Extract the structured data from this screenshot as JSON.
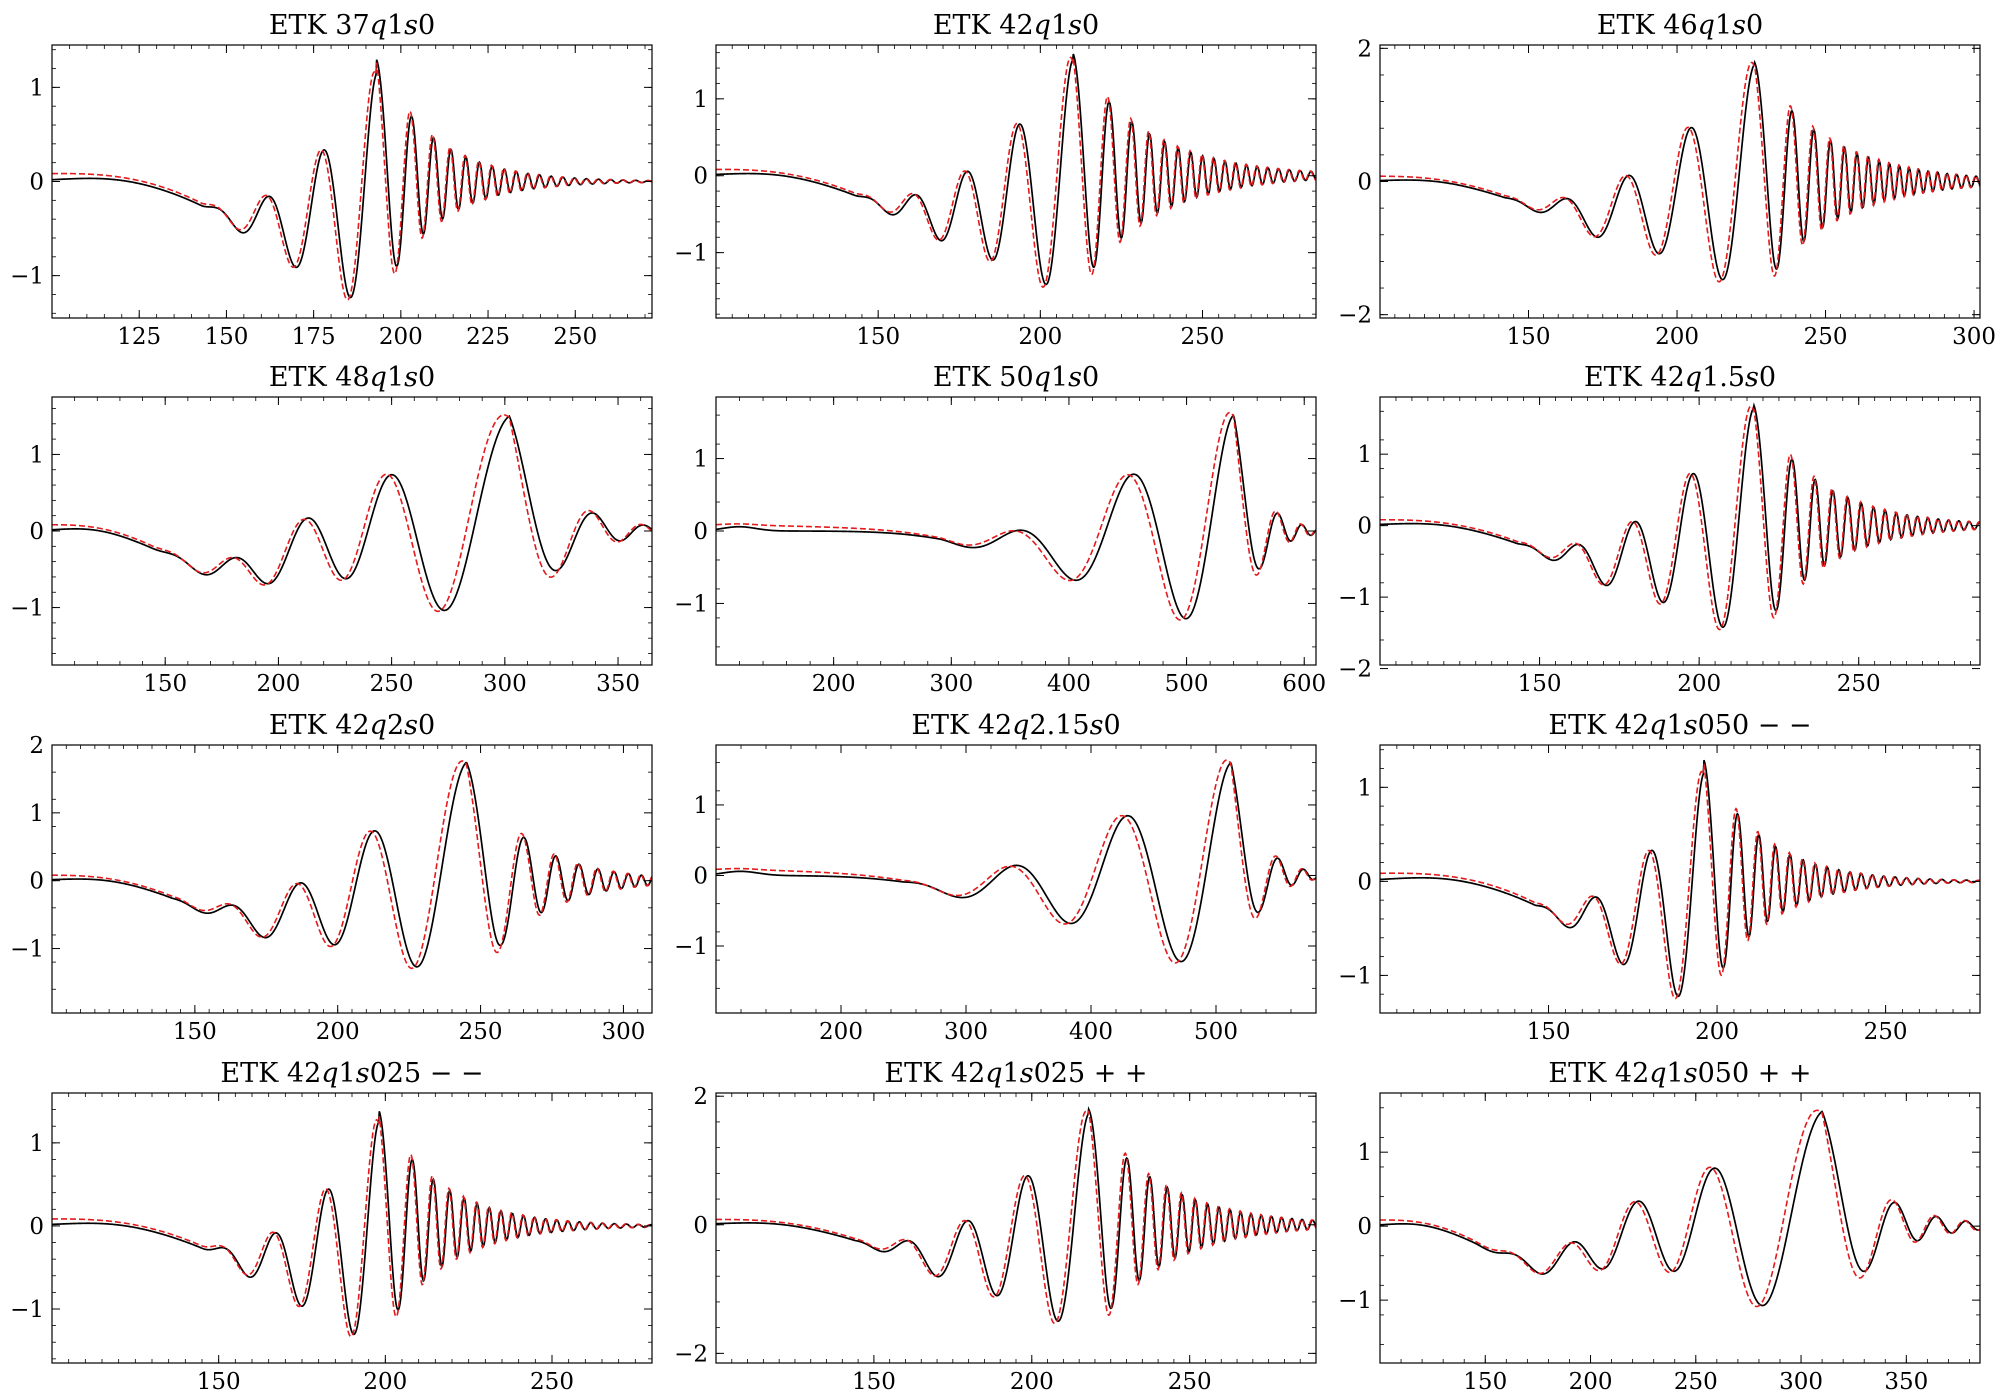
{
  "chart_data": [
    {
      "type": "line",
      "title_parts": [
        {
          "t": "ETK 37",
          "i": false
        },
        {
          "t": "q",
          "i": true
        },
        {
          "t": "1",
          "i": false
        },
        {
          "t": "s",
          "i": true
        },
        {
          "t": "0",
          "i": false
        }
      ],
      "xlim": [
        100,
        272
      ],
      "ylim": [
        -1.45,
        1.45
      ],
      "xticks": [
        125,
        150,
        175,
        200,
        225,
        250
      ],
      "yticks": [
        -1,
        0,
        1
      ],
      "series": [
        {
          "role": "black",
          "style": "solid",
          "color": "#000000"
        },
        {
          "role": "red",
          "style": "dashed",
          "color": "#e41a1c"
        }
      ],
      "wave": {
        "t0": 100,
        "tmerge": 193,
        "tend": 272,
        "amp": 1.3,
        "tau": 55,
        "tw": 15,
        "neg": 0.72,
        "negc": 175,
        "negw": 32,
        "p0": 16,
        "decay": 16,
        "shrink": 0.006
      }
    },
    {
      "type": "line",
      "title_parts": [
        {
          "t": "ETK 42",
          "i": false
        },
        {
          "t": "q",
          "i": true
        },
        {
          "t": "1",
          "i": false
        },
        {
          "t": "s",
          "i": true
        },
        {
          "t": "0",
          "i": false
        }
      ],
      "xlim": [
        100,
        285
      ],
      "ylim": [
        -1.85,
        1.7
      ],
      "xticks": [
        150,
        200,
        250
      ],
      "yticks": [
        -1,
        0,
        1
      ],
      "series": [
        {
          "role": "black",
          "style": "solid",
          "color": "#000000"
        },
        {
          "role": "red",
          "style": "dashed",
          "color": "#e41a1c"
        }
      ],
      "wave": {
        "t0": 100,
        "tmerge": 210,
        "tend": 285,
        "amp": 1.6,
        "tau": 60,
        "tw": 17,
        "neg": 0.72,
        "negc": 178,
        "negw": 35,
        "p0": 16,
        "decay": 22,
        "shrink": 0.005
      }
    },
    {
      "type": "line",
      "title_parts": [
        {
          "t": "ETK 46",
          "i": false
        },
        {
          "t": "q",
          "i": true
        },
        {
          "t": "1",
          "i": false
        },
        {
          "t": "s",
          "i": true
        },
        {
          "t": "0",
          "i": false
        }
      ],
      "xlim": [
        100,
        302
      ],
      "ylim": [
        -2.05,
        2.05
      ],
      "xticks": [
        150,
        200,
        250,
        300
      ],
      "yticks": [
        -2,
        0,
        2
      ],
      "series": [
        {
          "role": "black",
          "style": "solid",
          "color": "#000000"
        },
        {
          "role": "red",
          "style": "dashed",
          "color": "#e41a1c"
        }
      ],
      "wave": {
        "t0": 100,
        "tmerge": 226,
        "tend": 302,
        "amp": 1.8,
        "tau": 65,
        "tw": 22,
        "neg": 0.68,
        "negc": 180,
        "negw": 38,
        "p0": 21,
        "decay": 24,
        "shrink": 0.005
      }
    },
    {
      "type": "line",
      "title_parts": [
        {
          "t": "ETK 48",
          "i": false
        },
        {
          "t": "q",
          "i": true
        },
        {
          "t": "1",
          "i": false
        },
        {
          "t": "s",
          "i": true
        },
        {
          "t": "0",
          "i": false
        }
      ],
      "xlim": [
        100,
        365
      ],
      "ylim": [
        -1.75,
        1.75
      ],
      "xticks": [
        150,
        200,
        250,
        300,
        350
      ],
      "yticks": [
        -1,
        0,
        1
      ],
      "series": [
        {
          "role": "black",
          "style": "solid",
          "color": "#000000"
        },
        {
          "role": "red",
          "style": "dashed",
          "color": "#e41a1c"
        }
      ],
      "wave": {
        "t0": 100,
        "tmerge": 302,
        "tend": 365,
        "amp": 1.5,
        "tau": 160,
        "tw": 70,
        "neg": 0.62,
        "negc": 182,
        "negw": 38,
        "p0": 29,
        "decay": 20,
        "shrink": 0.0012
      }
    },
    {
      "type": "line",
      "title_parts": [
        {
          "t": "ETK 50",
          "i": false
        },
        {
          "t": "q",
          "i": true
        },
        {
          "t": "1",
          "i": false
        },
        {
          "t": "s",
          "i": true
        },
        {
          "t": "0",
          "i": false
        }
      ],
      "xlim": [
        100,
        610
      ],
      "ylim": [
        -1.85,
        1.85
      ],
      "xticks": [
        200,
        300,
        400,
        500,
        600
      ],
      "yticks": [
        -1,
        0,
        1
      ],
      "series": [
        {
          "role": "black",
          "style": "solid",
          "color": "#000000"
        },
        {
          "role": "red",
          "style": "dashed",
          "color": "#e41a1c"
        }
      ],
      "wave": {
        "t0": 100,
        "tmerge": 540,
        "tend": 610,
        "amp": 1.6,
        "tau": 420,
        "tw": 80,
        "neg": 0.3,
        "negc": 370,
        "negw": 80,
        "p0": 105,
        "decay": 20,
        "shrink": 0.0015
      }
    },
    {
      "type": "line",
      "title_parts": [
        {
          "t": "ETK 42",
          "i": false
        },
        {
          "t": "q",
          "i": true
        },
        {
          "t": "1.5",
          "i": false
        },
        {
          "t": "s",
          "i": true
        },
        {
          "t": "0",
          "i": false
        }
      ],
      "xlim": [
        100,
        288
      ],
      "ylim": [
        -1.95,
        1.8
      ],
      "xticks": [
        150,
        200,
        250
      ],
      "yticks": [
        -2,
        -1,
        0,
        1
      ],
      "series": [
        {
          "role": "black",
          "style": "solid",
          "color": "#000000"
        },
        {
          "role": "red",
          "style": "dashed",
          "color": "#e41a1c"
        }
      ],
      "wave": {
        "t0": 100,
        "tmerge": 217,
        "tend": 288,
        "amp": 1.7,
        "tau": 60,
        "tw": 20,
        "neg": 0.7,
        "negc": 178,
        "negw": 35,
        "p0": 18,
        "decay": 20,
        "shrink": 0.005
      }
    },
    {
      "type": "line",
      "title_parts": [
        {
          "t": "ETK 42",
          "i": false
        },
        {
          "t": "q",
          "i": true
        },
        {
          "t": "2",
          "i": false
        },
        {
          "t": "s",
          "i": true
        },
        {
          "t": "0",
          "i": false
        }
      ],
      "xlim": [
        100,
        310
      ],
      "ylim": [
        -1.95,
        2.0
      ],
      "xticks": [
        150,
        200,
        250,
        300
      ],
      "yticks": [
        -1,
        0,
        1,
        2
      ],
      "series": [
        {
          "role": "black",
          "style": "solid",
          "color": "#000000"
        },
        {
          "role": "red",
          "style": "dashed",
          "color": "#e41a1c"
        }
      ],
      "wave": {
        "t0": 100,
        "tmerge": 245,
        "tend": 310,
        "amp": 1.75,
        "tau": 90,
        "tw": 40,
        "neg": 0.72,
        "negc": 178,
        "negw": 36,
        "p0": 24,
        "decay": 20,
        "shrink": 0.003
      }
    },
    {
      "type": "line",
      "title_parts": [
        {
          "t": "ETK 42",
          "i": false
        },
        {
          "t": "q",
          "i": true
        },
        {
          "t": "2.15",
          "i": false
        },
        {
          "t": "s",
          "i": true
        },
        {
          "t": "0",
          "i": false
        }
      ],
      "xlim": [
        100,
        580
      ],
      "ylim": [
        -1.95,
        1.85
      ],
      "xticks": [
        200,
        300,
        400,
        500
      ],
      "yticks": [
        -1,
        0,
        1
      ],
      "series": [
        {
          "role": "black",
          "style": "solid",
          "color": "#000000"
        },
        {
          "role": "red",
          "style": "dashed",
          "color": "#e41a1c"
        }
      ],
      "wave": {
        "t0": 100,
        "tmerge": 512,
        "tend": 580,
        "amp": 1.6,
        "tau": 400,
        "tw": 80,
        "neg": 0.25,
        "negc": 330,
        "negw": 80,
        "p0": 95,
        "decay": 20,
        "shrink": 0.0015
      }
    },
    {
      "type": "line",
      "title_parts": [
        {
          "t": "ETK 42",
          "i": false
        },
        {
          "t": "q",
          "i": true
        },
        {
          "t": "1",
          "i": false
        },
        {
          "t": "s",
          "i": true
        },
        {
          "t": "050",
          "i": false
        },
        {
          "t": " − −",
          "i": false
        }
      ],
      "xlim": [
        100,
        278
      ],
      "ylim": [
        -1.4,
        1.45
      ],
      "xticks": [
        150,
        200,
        250
      ],
      "yticks": [
        -1,
        0,
        1
      ],
      "series": [
        {
          "role": "black",
          "style": "solid",
          "color": "#000000"
        },
        {
          "role": "red",
          "style": "dashed",
          "color": "#e41a1c"
        }
      ],
      "wave": {
        "t0": 100,
        "tmerge": 196,
        "tend": 278,
        "amp": 1.3,
        "tau": 55,
        "tw": 15,
        "neg": 0.7,
        "negc": 178,
        "negw": 32,
        "p0": 17,
        "decay": 17,
        "shrink": 0.006
      }
    },
    {
      "type": "line",
      "title_parts": [
        {
          "t": "ETK 42",
          "i": false
        },
        {
          "t": "q",
          "i": true
        },
        {
          "t": "1",
          "i": false
        },
        {
          "t": "s",
          "i": true
        },
        {
          "t": "025",
          "i": false
        },
        {
          "t": " − −",
          "i": false
        }
      ],
      "xlim": [
        100,
        280
      ],
      "ylim": [
        -1.65,
        1.6
      ],
      "xticks": [
        150,
        200,
        250
      ],
      "yticks": [
        -1,
        0,
        1
      ],
      "series": [
        {
          "role": "black",
          "style": "solid",
          "color": "#000000"
        },
        {
          "role": "red",
          "style": "dashed",
          "color": "#e41a1c"
        }
      ],
      "wave": {
        "t0": 100,
        "tmerge": 198,
        "tend": 280,
        "amp": 1.4,
        "tau": 55,
        "tw": 15,
        "neg": 0.7,
        "negc": 178,
        "negw": 34,
        "p0": 16,
        "decay": 18,
        "shrink": 0.006
      }
    },
    {
      "type": "line",
      "title_parts": [
        {
          "t": "ETK 42",
          "i": false
        },
        {
          "t": "q",
          "i": true
        },
        {
          "t": "1",
          "i": false
        },
        {
          "t": "s",
          "i": true
        },
        {
          "t": "025",
          "i": false
        },
        {
          "t": " + +",
          "i": false
        }
      ],
      "xlim": [
        100,
        290
      ],
      "ylim": [
        -2.15,
        2.05
      ],
      "xticks": [
        150,
        200,
        250
      ],
      "yticks": [
        -2,
        0,
        2
      ],
      "series": [
        {
          "role": "black",
          "style": "solid",
          "color": "#000000"
        },
        {
          "role": "red",
          "style": "dashed",
          "color": "#e41a1c"
        }
      ],
      "wave": {
        "t0": 100,
        "tmerge": 218,
        "tend": 290,
        "amp": 1.8,
        "tau": 60,
        "tw": 20,
        "neg": 0.68,
        "negc": 180,
        "negw": 36,
        "p0": 19,
        "decay": 22,
        "shrink": 0.005
      }
    },
    {
      "type": "line",
      "title_parts": [
        {
          "t": "ETK 42",
          "i": false
        },
        {
          "t": "q",
          "i": true
        },
        {
          "t": "1",
          "i": false
        },
        {
          "t": "s",
          "i": true
        },
        {
          "t": "050",
          "i": false
        },
        {
          "t": " + +",
          "i": false
        }
      ],
      "xlim": [
        100,
        385
      ],
      "ylim": [
        -1.85,
        1.8
      ],
      "xticks": [
        150,
        200,
        250,
        300,
        350
      ],
      "yticks": [
        -1,
        0,
        1
      ],
      "series": [
        {
          "role": "black",
          "style": "solid",
          "color": "#000000"
        },
        {
          "role": "red",
          "style": "dashed",
          "color": "#e41a1c"
        }
      ],
      "wave": {
        "t0": 100,
        "tmerge": 310,
        "tend": 385,
        "amp": 1.55,
        "tau": 140,
        "tw": 70,
        "neg": 0.6,
        "negc": 180,
        "negw": 36,
        "p0": 30,
        "decay": 22,
        "shrink": 0.0015
      }
    }
  ]
}
